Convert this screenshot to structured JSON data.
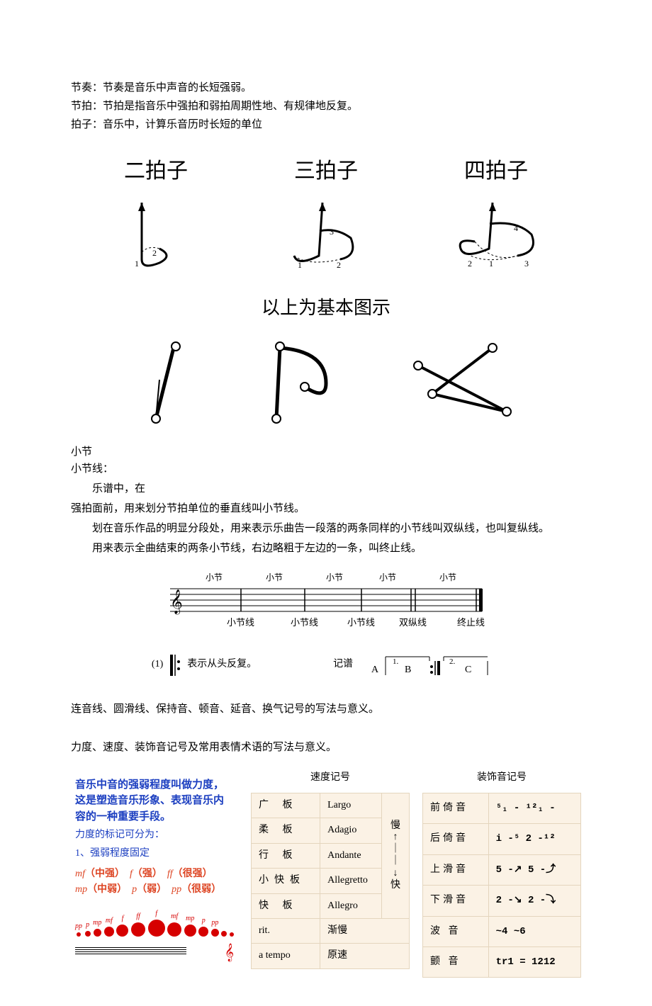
{
  "intro": {
    "l1": "节奏：节奏是音乐中声音的长短强弱。",
    "l2": "节拍：节拍是指音乐中强拍和弱拍周期性地、有规律地反复。",
    "l3": "拍子：音乐中，计算乐音历时长短的单位"
  },
  "beats": {
    "t1": "二拍子",
    "t2": "三拍子",
    "t3": "四拍子",
    "caption": "以上为基本图示"
  },
  "barline": {
    "l1": "小节",
    "l2": "小节线：",
    "p1": "乐谱中，在",
    "p2": "强拍面前，用来划分节拍单位的垂直线叫小节线。",
    "p3": "划在音乐作品的明显分段处，用来表示乐曲告一段落的两条同样的小节线叫双纵线，也叫复纵线。",
    "p4": "用来表示全曲结束的两条小节线，右边略粗于左边的一条，叫终止线。"
  },
  "staff_labels": {
    "bracket_top": "小节",
    "lbl1": "小节线",
    "lbl2": "小节线",
    "lbl3": "小节线",
    "lbl4": "双纵线",
    "lbl5": "终止线"
  },
  "repeat": {
    "num": "(1)",
    "text": "表示从头反复。",
    "jipu": "记谱",
    "a": "A",
    "b": "B",
    "c": "C",
    "n1": "1.",
    "n2": "2."
  },
  "notes": {
    "n1": "连音线、圆滑线、保持音、顿音、延音、换气记号的写法与意义。",
    "n2": "力度、速度、装饰音记号及常用表情术语的写法与意义。"
  },
  "dynamics": {
    "head": "音乐中音的强弱程度叫做力度，这是塑造音乐形象、表现音乐内容的一种重要手段。",
    "sub": "力度的标记可分为：",
    "list": "1、强弱程度固定",
    "r1": {
      "mf": "mf",
      "mf_cn": "（中强）",
      "f": "f",
      "f_cn": "（强）",
      "ff": "ff",
      "ff_cn": "（很强）"
    },
    "r2": {
      "mp": "mp",
      "mp_cn": "（中弱）",
      "p": "p",
      "p_cn": "（弱）",
      "pp": "pp",
      "pp_cn": "（很弱）"
    },
    "dot_labels": [
      "pp",
      "p",
      "mp",
      "mf",
      "f",
      "ff",
      "f",
      "mf",
      "mp",
      "p",
      "pp"
    ],
    "dot_sizes": [
      6,
      8,
      11,
      14,
      17,
      20,
      24,
      20,
      17,
      14,
      11,
      8,
      6
    ],
    "colors": {
      "blue": "#1b3ec0",
      "red": "#d60000",
      "mark": "#d42"
    }
  },
  "tempo": {
    "title": "速度记号",
    "rows": [
      {
        "cn": "广  板",
        "it": "Largo",
        "note": "慢"
      },
      {
        "cn": "柔  板",
        "it": "Adagio",
        "note": ""
      },
      {
        "cn": "行  板",
        "it": "Andante",
        "note": ""
      },
      {
        "cn": "小快板",
        "it": "Allegretto",
        "note": ""
      },
      {
        "cn": "快  板",
        "it": "Allegro",
        "note": "快"
      }
    ],
    "extra": [
      {
        "it": "rit.",
        "cn": "渐慢"
      },
      {
        "it": "a tempo",
        "cn": "原速"
      }
    ],
    "bg": "#fbf2e5",
    "border": "#e4d5bd"
  },
  "ornament": {
    "title": "装饰音记号",
    "rows": [
      {
        "cn": "前倚音",
        "sym": "⁵₁ -   ¹²₁ -"
      },
      {
        "cn": "后倚音",
        "sym": "i -⁵   2 -¹²"
      },
      {
        "cn": "上滑音",
        "sym": "5 -↗  5 -⤴"
      },
      {
        "cn": "下滑音",
        "sym": "2 -↘  2 -⤵"
      },
      {
        "cn": "波  音",
        "sym": "~4      ~6"
      },
      {
        "cn": "颤  音",
        "sym": "tr1 = 1212"
      }
    ]
  }
}
